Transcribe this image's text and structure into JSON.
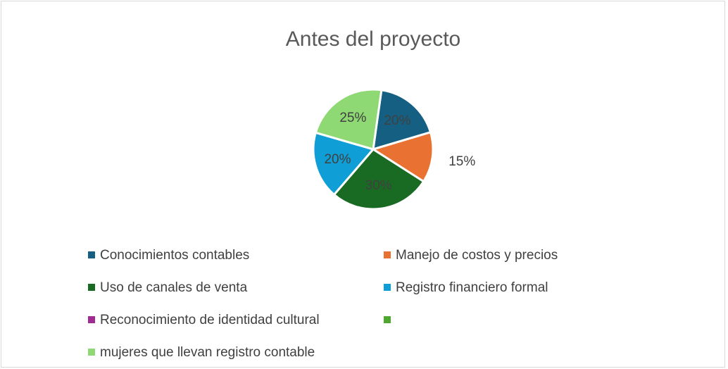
{
  "chart_data": {
    "type": "pie",
    "title": "Antes del proyecto",
    "categories": [
      "Conocimientos contables",
      "Manejo de costos y precios",
      "Uso de canales de venta",
      "Registro financiero formal",
      "Reconocimiento de identidad cultural",
      null,
      "mujeres que llevan registro contable"
    ],
    "values": [
      20,
      15,
      30,
      20,
      null,
      null,
      25
    ],
    "value_labels": [
      "20%",
      "15%",
      "30%",
      "20%",
      null,
      null,
      "25%"
    ],
    "colors": [
      "#156082",
      "#e97132",
      "#196b24",
      "#0f9ed5",
      "#a02b93",
      "#4ea72e",
      "#8ed973"
    ],
    "legend": "bottom"
  }
}
